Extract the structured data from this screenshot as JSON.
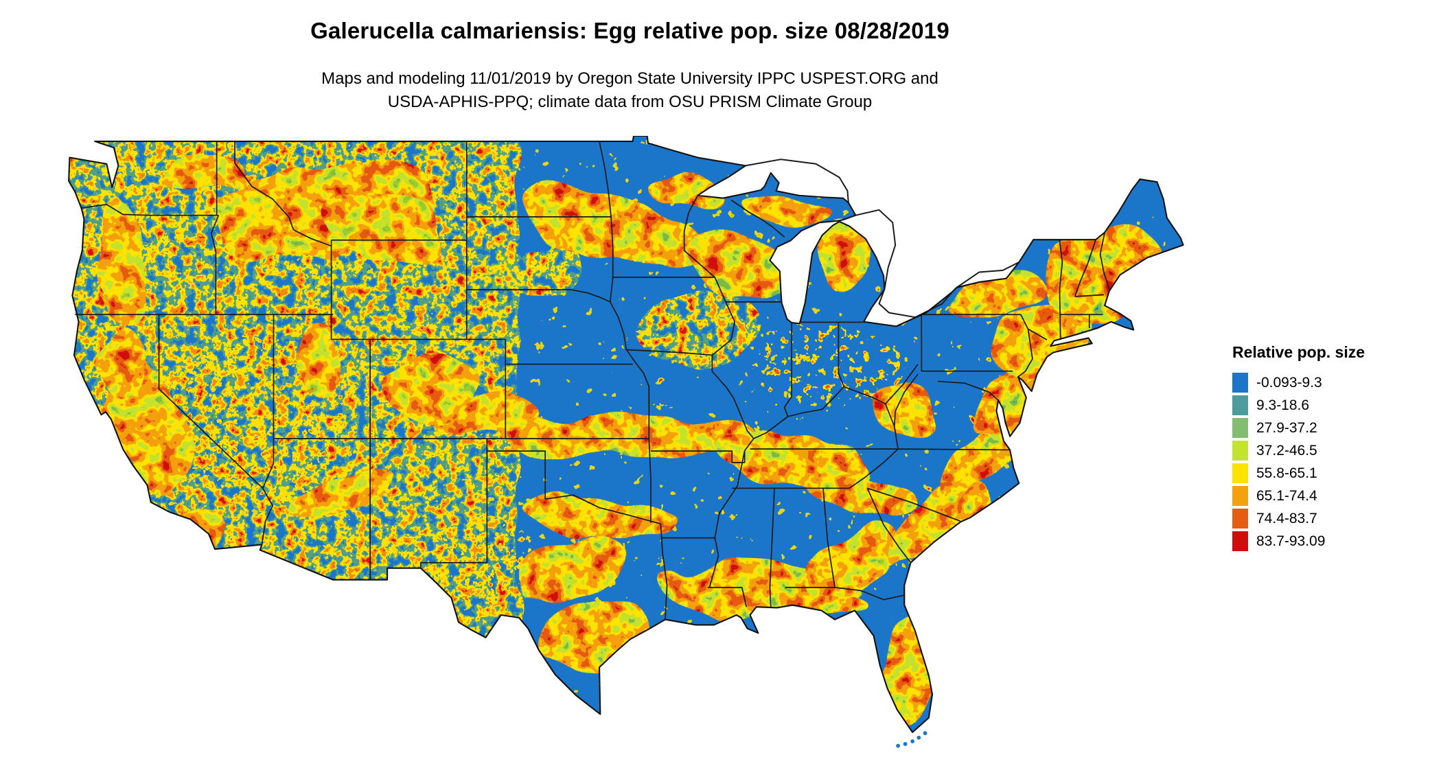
{
  "header": {
    "title": "Galerucella calmariensis: Egg relative pop. size 08/28/2019",
    "subtitle_line1": "Maps and modeling 11/01/2019 by Oregon State University IPPC USPEST.ORG and",
    "subtitle_line2": "USDA-APHIS-PPQ; climate data from OSU PRISM Climate Group"
  },
  "legend": {
    "title": "Relative pop. size",
    "items": [
      {
        "label": "-0.093-9.3",
        "color": "#1B76C9"
      },
      {
        "label": "9.3-18.6",
        "color": "#4E9B9E"
      },
      {
        "label": "27.9-37.2",
        "color": "#83BE70"
      },
      {
        "label": "37.2-46.5",
        "color": "#C4E32F"
      },
      {
        "label": "55.8-65.1",
        "color": "#FFE300"
      },
      {
        "label": "65.1-74.4",
        "color": "#F4A20B"
      },
      {
        "label": "74.4-83.7",
        "color": "#E55D13"
      },
      {
        "label": "83.7-93.09",
        "color": "#D00D0D"
      }
    ]
  }
}
